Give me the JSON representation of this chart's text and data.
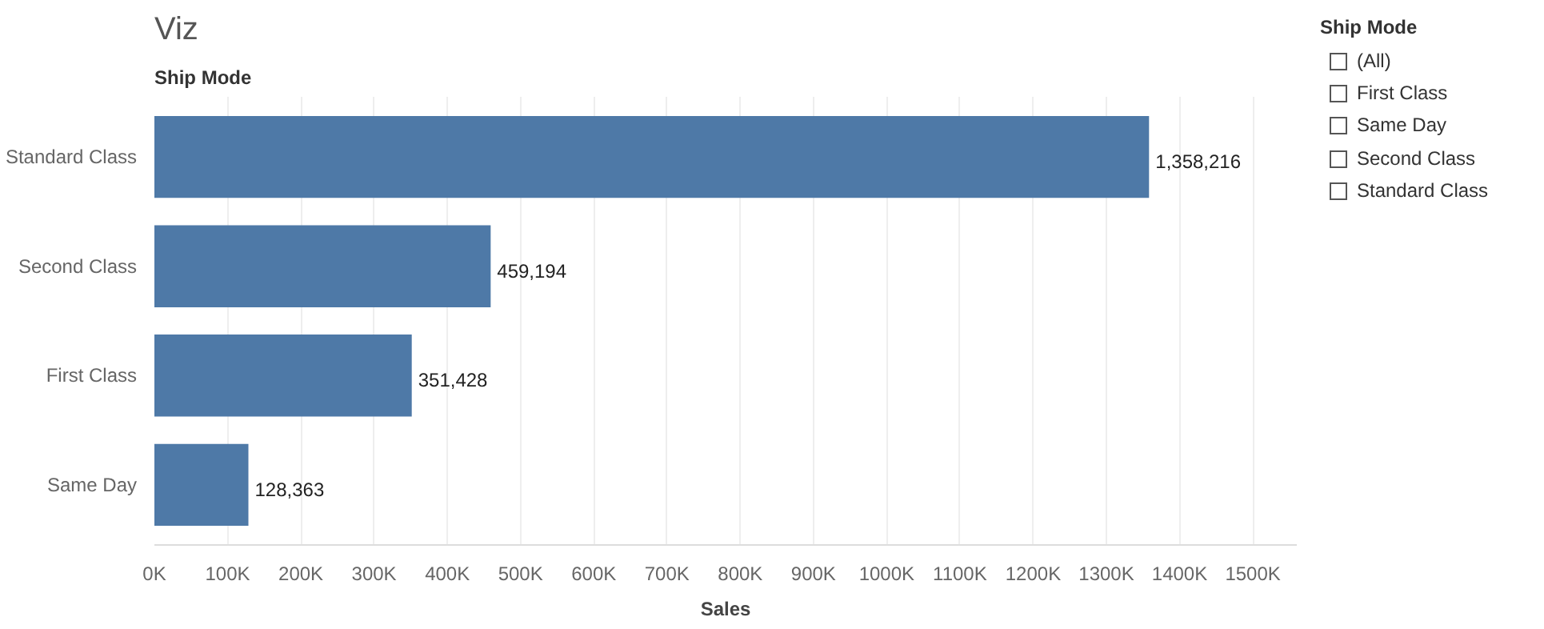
{
  "chart_data": [
    {
      "type": "bar",
      "title": "Viz",
      "ylabel": "Ship Mode",
      "xlabel": "Sales",
      "orientation": "horizontal",
      "categories": [
        "Standard Class",
        "Second Class",
        "First Class",
        "Same Day"
      ],
      "values": [
        1358216,
        459194,
        351428,
        128363
      ],
      "color": "#4e79a7",
      "value_labels": [
        "1,358,216",
        "459,194",
        "351,428",
        "128,363"
      ],
      "xlim": [
        0,
        1560000
      ],
      "xticks": [
        {
          "value": 0,
          "label": "0K"
        },
        {
          "value": 100000,
          "label": "100K"
        },
        {
          "value": 200000,
          "label": "200K"
        },
        {
          "value": 300000,
          "label": "300K"
        },
        {
          "value": 400000,
          "label": "400K"
        },
        {
          "value": 500000,
          "label": "500K"
        },
        {
          "value": 600000,
          "label": "600K"
        },
        {
          "value": 700000,
          "label": "700K"
        },
        {
          "value": 800000,
          "label": "800K"
        },
        {
          "value": 900000,
          "label": "900K"
        },
        {
          "value": 1000000,
          "label": "1000K"
        },
        {
          "value": 1100000,
          "label": "1100K"
        },
        {
          "value": 1200000,
          "label": "1200K"
        },
        {
          "value": 1300000,
          "label": "1300K"
        },
        {
          "value": 1400000,
          "label": "1400K"
        },
        {
          "value": 1500000,
          "label": "1500K"
        }
      ],
      "grid": "x"
    },
    {
      "type": "other",
      "title": "Ship Mode",
      "annotations": [
        "(All)",
        "First Class",
        "Same Day",
        "Second Class",
        "Standard Class"
      ]
    }
  ]
}
